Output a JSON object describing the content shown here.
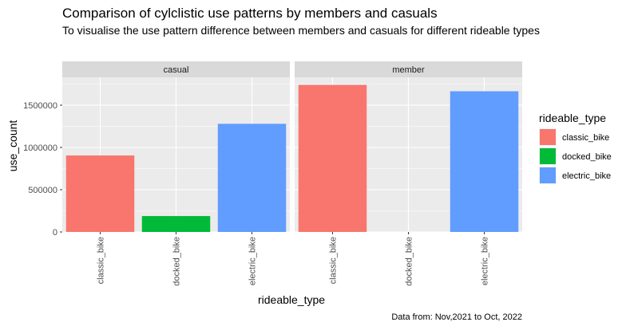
{
  "chart_data": {
    "type": "bar",
    "title": "Comparison of cylclistic use patterns by members and casuals",
    "subtitle": "To visualise the use pattern difference between members and casuals for different rideable types",
    "xlabel": "rideable_type",
    "ylabel": "use_count",
    "caption": "Data from: Nov,2021 to Oct, 2022",
    "categories": [
      "classic_bike",
      "docked_bike",
      "electric_bike"
    ],
    "ylim": [
      0,
      1830000
    ],
    "yticks": [
      0,
      500000,
      1000000,
      1500000
    ],
    "ytick_labels": [
      "0",
      "500000",
      "1000000",
      "1500000"
    ],
    "facets": [
      {
        "name": "casual",
        "values": [
          905000,
          188000,
          1280000
        ]
      },
      {
        "name": "member",
        "values": [
          1740000,
          null,
          1665000
        ]
      }
    ],
    "legend": {
      "title": "rideable_type",
      "placement": "right",
      "entries": [
        "classic_bike",
        "docked_bike",
        "electric_bike"
      ]
    },
    "colors": {
      "classic_bike": "#F8766D",
      "docked_bike": "#00BA38",
      "electric_bike": "#619CFF",
      "panel_bg": "#EBEBEB",
      "strip_bg": "#D9D9D9",
      "grid": "#FFFFFF"
    },
    "grid": true
  }
}
